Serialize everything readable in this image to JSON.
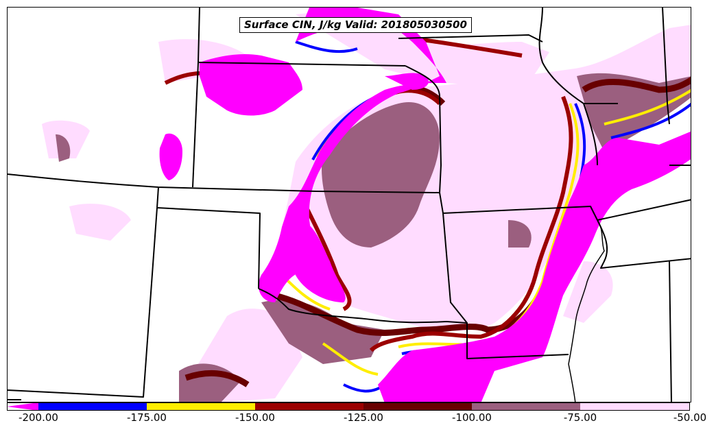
{
  "title": "Surface CIN, J/kg Valid: 201805030500",
  "colors": {
    "lt200": "#ff00ff",
    "b175": "#0000ff",
    "b150": "#ffee00",
    "b125": "#9b0000",
    "b100": "#680000",
    "b75": "#9b5f7f",
    "b50": "#ffdcff",
    "boundary": "#000000",
    "background": "#ffffff"
  },
  "legend": {
    "ticks": [
      "-200.00",
      "-175.00",
      "-150.00",
      "-125.00",
      "-100.00",
      "-75.00",
      "-50.00"
    ],
    "segments": [
      {
        "range": "< -200",
        "color": "#ff00ff"
      },
      {
        "range": "-200 to -175",
        "color": "#0000ff"
      },
      {
        "range": "-175 to -150",
        "color": "#ffee00"
      },
      {
        "range": "-150 to -125",
        "color": "#9b0000"
      },
      {
        "range": "-125 to -100",
        "color": "#680000"
      },
      {
        "range": "-100 to -75",
        "color": "#9b5f7f"
      },
      {
        "range": "-75 to -50",
        "color": "#ffdcff"
      }
    ]
  }
}
